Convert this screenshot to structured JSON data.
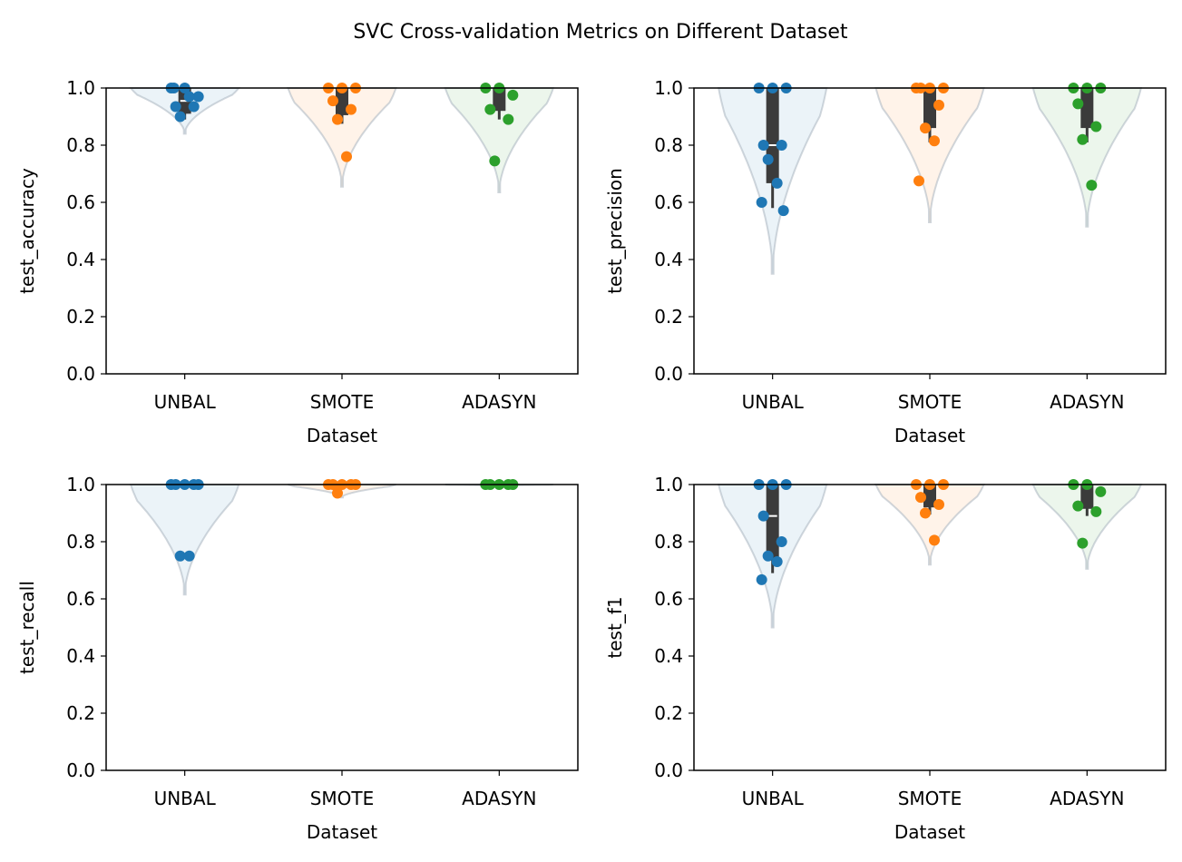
{
  "suptitle": "SVC Cross-validation Metrics on Different Dataset",
  "colors": {
    "UNBAL": "#1f77b4",
    "SMOTE": "#ff7f0e",
    "ADASYN": "#2ca02c",
    "box": "#3b3b3b",
    "median": "#ffffff",
    "axis": "#000000"
  },
  "chart_data": [
    {
      "type": "violin",
      "title": "",
      "xlabel": "Dataset",
      "ylabel": "test_accuracy",
      "categories": [
        "UNBAL",
        "SMOTE",
        "ADASYN"
      ],
      "ylim": [
        0,
        1.0
      ],
      "yticks": [
        "0.0",
        "0.2",
        "0.4",
        "0.6",
        "0.8",
        "1.0"
      ],
      "points": [
        [
          1.0,
          1.0,
          0.97,
          0.935,
          0.935,
          0.9,
          0.97,
          1.0
        ],
        [
          1.0,
          1.0,
          1.0,
          0.955,
          0.925,
          0.89,
          0.76
        ],
        [
          1.0,
          1.0,
          0.975,
          0.925,
          0.89,
          0.745
        ]
      ],
      "violin_range": [
        [
          0.84,
          1.0
        ],
        [
          0.655,
          1.0
        ],
        [
          0.635,
          1.0
        ]
      ],
      "box": [
        {
          "q1": 0.91,
          "q3": 1.0,
          "median": 0.955,
          "wlo": 0.89,
          "whi": 1.0
        },
        {
          "q1": 0.905,
          "q3": 1.0,
          "median": 1.0,
          "wlo": 0.875,
          "whi": 1.0
        },
        {
          "q1": 0.92,
          "q3": 1.0,
          "median": 1.0,
          "wlo": 0.89,
          "whi": 1.0
        }
      ]
    },
    {
      "type": "violin",
      "title": "",
      "xlabel": "Dataset",
      "ylabel": "test_precision",
      "categories": [
        "UNBAL",
        "SMOTE",
        "ADASYN"
      ],
      "ylim": [
        0,
        1.0
      ],
      "yticks": [
        "0.0",
        "0.2",
        "0.4",
        "0.6",
        "0.8",
        "1.0"
      ],
      "points": [
        [
          1.0,
          1.0,
          1.0,
          0.8,
          0.8,
          0.75,
          0.667,
          0.6,
          0.571
        ],
        [
          1.0,
          1.0,
          1.0,
          1.0,
          0.94,
          0.86,
          0.815,
          0.675
        ],
        [
          1.0,
          1.0,
          1.0,
          0.945,
          0.865,
          0.82,
          0.66
        ]
      ],
      "violin_range": [
        [
          0.35,
          1.0
        ],
        [
          0.53,
          1.0
        ],
        [
          0.515,
          1.0
        ]
      ],
      "box": [
        {
          "q1": 0.667,
          "q3": 1.0,
          "median": 0.8,
          "wlo": 0.58,
          "whi": 1.0
        },
        {
          "q1": 0.86,
          "q3": 1.0,
          "median": 1.0,
          "wlo": 0.81,
          "whi": 1.0
        },
        {
          "q1": 0.86,
          "q3": 1.0,
          "median": 1.0,
          "wlo": 0.81,
          "whi": 1.0
        }
      ]
    },
    {
      "type": "violin",
      "title": "",
      "xlabel": "Dataset",
      "ylabel": "test_recall",
      "categories": [
        "UNBAL",
        "SMOTE",
        "ADASYN"
      ],
      "ylim": [
        0,
        1.0
      ],
      "yticks": [
        "0.0",
        "0.2",
        "0.4",
        "0.6",
        "0.8",
        "1.0"
      ],
      "points": [
        [
          1.0,
          1.0,
          1.0,
          1.0,
          1.0,
          0.75,
          0.75
        ],
        [
          1.0,
          1.0,
          1.0,
          1.0,
          1.0,
          0.97
        ],
        [
          1.0,
          1.0,
          1.0,
          1.0,
          1.0
        ]
      ],
      "violin_range": [
        [
          0.615,
          1.0
        ],
        [
          0.955,
          1.0
        ],
        [
          0.995,
          1.0
        ]
      ],
      "box": [
        {
          "q1": 1.0,
          "q3": 1.0,
          "median": 1.0,
          "wlo": 1.0,
          "whi": 1.0
        },
        {
          "q1": 1.0,
          "q3": 1.0,
          "median": 1.0,
          "wlo": 1.0,
          "whi": 1.0
        },
        {
          "q1": 1.0,
          "q3": 1.0,
          "median": 1.0,
          "wlo": 1.0,
          "whi": 1.0
        }
      ]
    },
    {
      "type": "violin",
      "title": "",
      "xlabel": "Dataset",
      "ylabel": "test_f1",
      "categories": [
        "UNBAL",
        "SMOTE",
        "ADASYN"
      ],
      "ylim": [
        0,
        1.0
      ],
      "yticks": [
        "0.0",
        "0.2",
        "0.4",
        "0.6",
        "0.8",
        "1.0"
      ],
      "points": [
        [
          1.0,
          1.0,
          1.0,
          0.89,
          0.8,
          0.75,
          0.73,
          0.667
        ],
        [
          1.0,
          1.0,
          1.0,
          0.955,
          0.93,
          0.9,
          0.805
        ],
        [
          1.0,
          1.0,
          0.975,
          0.925,
          0.905,
          0.795
        ]
      ],
      "violin_range": [
        [
          0.5,
          1.0
        ],
        [
          0.72,
          1.0
        ],
        [
          0.705,
          1.0
        ]
      ],
      "box": [
        {
          "q1": 0.74,
          "q3": 1.0,
          "median": 0.89,
          "wlo": 0.69,
          "whi": 1.0
        },
        {
          "q1": 0.92,
          "q3": 1.0,
          "median": 1.0,
          "wlo": 0.895,
          "whi": 1.0
        },
        {
          "q1": 0.915,
          "q3": 1.0,
          "median": 1.0,
          "wlo": 0.89,
          "whi": 1.0
        }
      ]
    }
  ]
}
